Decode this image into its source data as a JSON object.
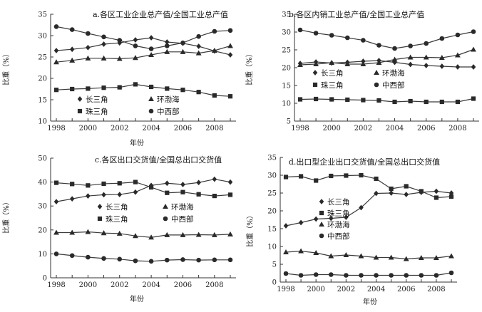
{
  "chart_data": [
    {
      "type": "line",
      "title": "a.各区工业企业总产值/全国工业总产值",
      "xlabel": "年份",
      "ylabel": "比重（%）",
      "x": [
        1998,
        1999,
        2000,
        2001,
        2002,
        2003,
        2004,
        2005,
        2006,
        2007,
        2008,
        2009
      ],
      "xticks": [
        1998,
        2000,
        2002,
        2004,
        2006,
        2008
      ],
      "ylim": [
        10,
        35
      ],
      "yticks": [
        10,
        15,
        20,
        25,
        30,
        35
      ],
      "legend_columns": 2,
      "series": [
        {
          "name": "长三角",
          "marker": "diamond",
          "values": [
            26.5,
            26.8,
            27.2,
            28.0,
            28.3,
            29.0,
            29.5,
            28.5,
            28.2,
            27.5,
            26.4,
            25.5
          ]
        },
        {
          "name": "环渤海",
          "marker": "triangle",
          "values": [
            23.8,
            24.2,
            24.7,
            24.7,
            24.6,
            24.8,
            25.5,
            26.2,
            26.2,
            25.9,
            26.5,
            27.6
          ]
        },
        {
          "name": "珠三角",
          "marker": "square",
          "values": [
            17.3,
            17.5,
            17.6,
            17.8,
            17.9,
            18.6,
            18.0,
            17.6,
            17.3,
            16.8,
            16.0,
            15.8
          ]
        },
        {
          "name": "中西部",
          "marker": "circle",
          "values": [
            32.1,
            31.4,
            30.5,
            29.7,
            28.9,
            27.6,
            26.9,
            27.6,
            28.3,
            29.8,
            31.0,
            31.2
          ]
        }
      ]
    },
    {
      "type": "line",
      "title": "b.各区内销工业总产值/全国工业总产值",
      "xlabel": "",
      "ylabel": "比重（%）",
      "x": [
        1998,
        1999,
        2000,
        2001,
        2002,
        2003,
        2004,
        2005,
        2006,
        2007,
        2008,
        2009
      ],
      "xticks": [
        1998,
        2000,
        2002,
        2004,
        2006,
        2008
      ],
      "ylim": [
        5,
        35
      ],
      "yticks": [
        5,
        10,
        15,
        20,
        25,
        30,
        35
      ],
      "legend_columns": 2,
      "series": [
        {
          "name": "长三角",
          "marker": "diamond",
          "values": [
            21.2,
            21.6,
            21.3,
            21.5,
            21.8,
            22.0,
            21.5,
            20.9,
            20.6,
            20.4,
            20.2,
            20.2
          ]
        },
        {
          "name": "环渤海",
          "marker": "triangle",
          "values": [
            20.8,
            21.0,
            21.4,
            21.0,
            21.0,
            21.4,
            22.3,
            22.9,
            22.9,
            22.8,
            23.5,
            25.1
          ]
        },
        {
          "name": "珠三角",
          "marker": "square",
          "values": [
            11.1,
            11.2,
            11.1,
            11.0,
            10.9,
            10.8,
            10.4,
            10.6,
            10.4,
            10.4,
            10.4,
            11.3
          ]
        },
        {
          "name": "中西部",
          "marker": "circle",
          "values": [
            30.6,
            29.7,
            29.1,
            28.4,
            27.7,
            26.3,
            25.4,
            26.1,
            26.8,
            28.2,
            29.2,
            30.1
          ]
        }
      ]
    },
    {
      "type": "line",
      "title": "c.各区出口交货值/全国总出口交货值",
      "xlabel": "年份",
      "ylabel": "比重（%）",
      "x": [
        1998,
        1999,
        2000,
        2001,
        2002,
        2003,
        2004,
        2005,
        2006,
        2007,
        2008,
        2009
      ],
      "xticks": [
        1998,
        2000,
        2002,
        2004,
        2006,
        2008
      ],
      "ylim": [
        0,
        50
      ],
      "yticks": [
        0,
        10,
        20,
        30,
        40,
        50
      ],
      "legend_columns": 2,
      "series": [
        {
          "name": "长三角",
          "marker": "diamond",
          "values": [
            31.8,
            33.0,
            34.2,
            34.7,
            34.8,
            35.8,
            38.6,
            39.5,
            39.0,
            39.8,
            41.2,
            40.0
          ]
        },
        {
          "name": "环渤海",
          "marker": "triangle",
          "values": [
            18.9,
            18.9,
            19.2,
            18.7,
            18.5,
            17.5,
            16.9,
            17.9,
            17.9,
            18.0,
            17.9,
            18.2
          ]
        },
        {
          "name": "珠三角",
          "marker": "square",
          "values": [
            39.7,
            39.2,
            38.6,
            39.3,
            39.5,
            40.0,
            37.8,
            35.5,
            35.8,
            34.9,
            34.2,
            34.7
          ]
        },
        {
          "name": "中西部",
          "marker": "circle",
          "values": [
            10.0,
            9.3,
            8.6,
            8.1,
            7.8,
            7.1,
            6.9,
            7.4,
            7.6,
            7.4,
            7.5,
            7.5
          ]
        }
      ]
    },
    {
      "type": "line",
      "title": "d.出口型企业出口交货值/全国总出口交货值",
      "xlabel": "年份",
      "ylabel": "比重（%）",
      "x": [
        1998,
        1999,
        2000,
        2001,
        2002,
        2003,
        2004,
        2005,
        2006,
        2007,
        2008,
        2009
      ],
      "xticks": [
        1998,
        2000,
        2002,
        2004,
        2006,
        2008
      ],
      "ylim": [
        0,
        35
      ],
      "yticks": [
        0,
        5,
        10,
        15,
        20,
        25,
        30,
        35
      ],
      "legend_columns": 1,
      "series": [
        {
          "name": "长三角",
          "marker": "diamond",
          "values": [
            15.8,
            16.7,
            17.7,
            17.9,
            18.2,
            20.9,
            24.9,
            25.0,
            24.6,
            25.2,
            25.5,
            25.0
          ]
        },
        {
          "name": "珠三角",
          "marker": "square",
          "values": [
            29.5,
            29.7,
            28.5,
            29.8,
            29.9,
            30.0,
            29.0,
            26.2,
            26.9,
            25.5,
            23.7,
            24.0
          ]
        },
        {
          "name": "环渤海",
          "marker": "triangle",
          "values": [
            8.4,
            8.7,
            8.2,
            7.3,
            7.6,
            7.3,
            6.9,
            6.9,
            6.5,
            6.8,
            6.8,
            7.3
          ]
        },
        {
          "name": "中西部",
          "marker": "circle",
          "values": [
            2.4,
            1.9,
            2.1,
            2.1,
            1.9,
            1.9,
            1.9,
            1.9,
            1.9,
            1.9,
            1.9,
            2.6
          ]
        }
      ]
    }
  ]
}
